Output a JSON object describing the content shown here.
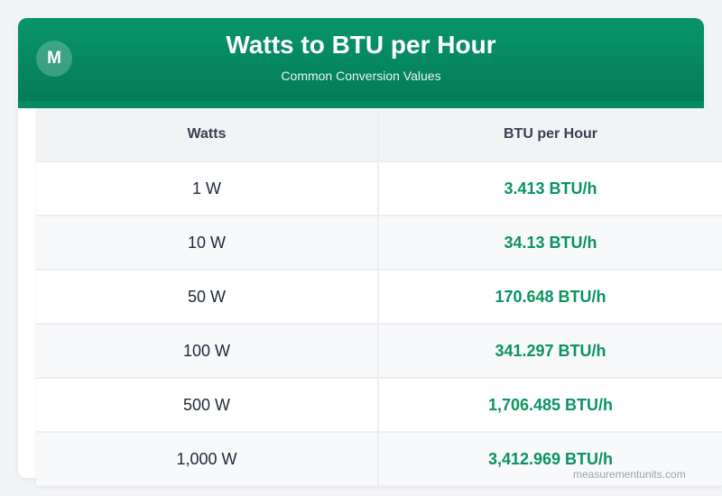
{
  "header": {
    "logo_letter": "M",
    "title": "Watts to BTU per Hour",
    "subtitle": "Common Conversion Values"
  },
  "table": {
    "columns": [
      "Watts",
      "BTU per Hour"
    ],
    "rows": [
      {
        "watts": "1 W",
        "btu": "3.413 BTU/h"
      },
      {
        "watts": "10 W",
        "btu": "34.13 BTU/h"
      },
      {
        "watts": "50 W",
        "btu": "170.648 BTU/h"
      },
      {
        "watts": "100 W",
        "btu": "341.297 BTU/h"
      },
      {
        "watts": "500 W",
        "btu": "1,706.485 BTU/h"
      },
      {
        "watts": "1,000 W",
        "btu": "3,412.969 BTU/h"
      }
    ]
  },
  "watermark": "measurementunits.com",
  "colors": {
    "header_green": "#07956a",
    "value_green": "#0a9460",
    "background": "#f3f4f6"
  }
}
